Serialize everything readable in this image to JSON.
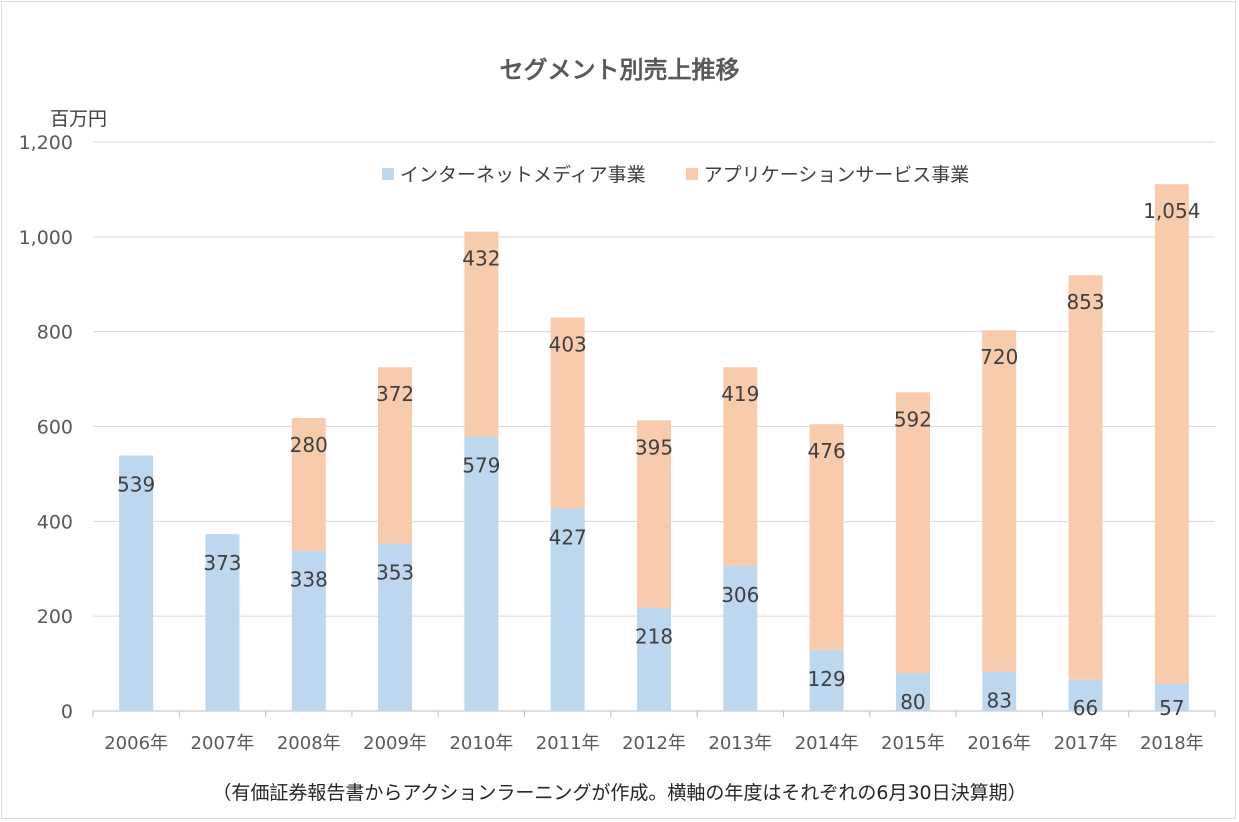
{
  "chart_data": {
    "type": "bar",
    "stacked": true,
    "title": "セグメント別売上推移",
    "ylabel": "百万円",
    "xlabel": "",
    "ylim": [
      0,
      1200
    ],
    "yticks": [
      0,
      200,
      400,
      600,
      800,
      1000,
      1200
    ],
    "ytick_labels": [
      "0",
      "200",
      "400",
      "600",
      "800",
      "1,000",
      "1,200"
    ],
    "grid": true,
    "legend_position": "top",
    "categories": [
      "2006年",
      "2007年",
      "2008年",
      "2009年",
      "2010年",
      "2011年",
      "2012年",
      "2013年",
      "2014年",
      "2015年",
      "2016年",
      "2017年",
      "2018年"
    ],
    "series": [
      {
        "name": "インターネットメディア事業",
        "color": "#bdd7ee",
        "values": [
          539,
          373,
          338,
          353,
          579,
          427,
          218,
          306,
          129,
          80,
          83,
          66,
          57
        ],
        "labels": [
          "539",
          "373",
          "338",
          "353",
          "579",
          "427",
          "218",
          "306",
          "129",
          "80",
          "83",
          "66",
          "57"
        ]
      },
      {
        "name": "アプリケーションサービス事業",
        "color": "#f8cbad",
        "values": [
          null,
          null,
          280,
          372,
          432,
          403,
          395,
          419,
          476,
          592,
          720,
          853,
          1054
        ],
        "labels": [
          "",
          "",
          "280",
          "372",
          "432",
          "403",
          "395",
          "419",
          "476",
          "592",
          "720",
          "853",
          "1,054"
        ]
      }
    ]
  },
  "footnote": "（有価証券報告書からアクションラーニングが作成。横軸の年度はそれぞれの6月30日決算期）"
}
